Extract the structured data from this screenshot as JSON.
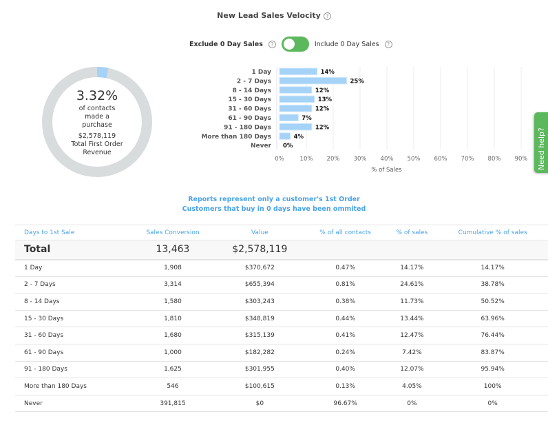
{
  "title": "New Lead Sales Velocity",
  "toggle": {
    "left_label": "Exclude 0 Day Sales",
    "right_label": "Include 0 Day Sales",
    "state": "on",
    "color": "#5cb85c"
  },
  "summary": {
    "percent": "3.32%",
    "percent_label": "of contacts made a purchase",
    "revenue": "$2,578,119",
    "revenue_label": "Total First Order Revenue",
    "fraction": 0.0332
  },
  "chart_data": {
    "type": "bar",
    "orientation": "horizontal",
    "categories": [
      "1 Day",
      "2 - 7 Days",
      "8 - 14 Days",
      "15 - 30 Days",
      "31 - 60 Days",
      "61 - 90 Days",
      "91 - 180 Days",
      "More than 180 Days",
      "Never"
    ],
    "values": [
      14,
      25,
      12,
      13,
      12,
      7,
      12,
      4,
      0
    ],
    "value_labels": [
      "14%",
      "25%",
      "12%",
      "13%",
      "12%",
      "7%",
      "12%",
      "4%",
      "0%"
    ],
    "xlabel": "% of Sales",
    "xticks": [
      "0%",
      "10%",
      "20%",
      "30%",
      "40%",
      "50%",
      "60%",
      "70%",
      "80%",
      "90%"
    ],
    "xlim": [
      0,
      90
    ],
    "grid": true,
    "bar_color": "#a5d3f7"
  },
  "messages": [
    "Reports represent only a customer's 1st Order",
    "Customers that buy in 0 days have been ommited"
  ],
  "table": {
    "headers": [
      "Days to 1st Sale",
      "Sales Conversion",
      "Value",
      "% of all contacts",
      "% of sales",
      "Cumulative % of sales"
    ],
    "total": [
      "Total",
      "13,463",
      "$2,578,119",
      "",
      "",
      ""
    ],
    "rows": [
      [
        "1 Day",
        "1,908",
        "$370,672",
        "0.47%",
        "14.17%",
        "14.17%"
      ],
      [
        "2 - 7 Days",
        "3,314",
        "$655,394",
        "0.81%",
        "24.61%",
        "38.78%"
      ],
      [
        "8 - 14 Days",
        "1,580",
        "$303,243",
        "0.38%",
        "11.73%",
        "50.52%"
      ],
      [
        "15 - 30 Days",
        "1,810",
        "$348,819",
        "0.44%",
        "13.44%",
        "63.96%"
      ],
      [
        "31 - 60 Days",
        "1,680",
        "$315,139",
        "0.41%",
        "12.47%",
        "76.44%"
      ],
      [
        "61 - 90 Days",
        "1,000",
        "$182,282",
        "0.24%",
        "7.42%",
        "83.87%"
      ],
      [
        "91 - 180 Days",
        "1,625",
        "$301,955",
        "0.40%",
        "12.07%",
        "95.94%"
      ],
      [
        "More than 180 Days",
        "546",
        "$100,615",
        "0.13%",
        "4.05%",
        "100%"
      ],
      [
        "Never",
        "391,815",
        "$0",
        "96.67%",
        "0%",
        "0%"
      ]
    ]
  },
  "help": {
    "label": "Need help?"
  }
}
